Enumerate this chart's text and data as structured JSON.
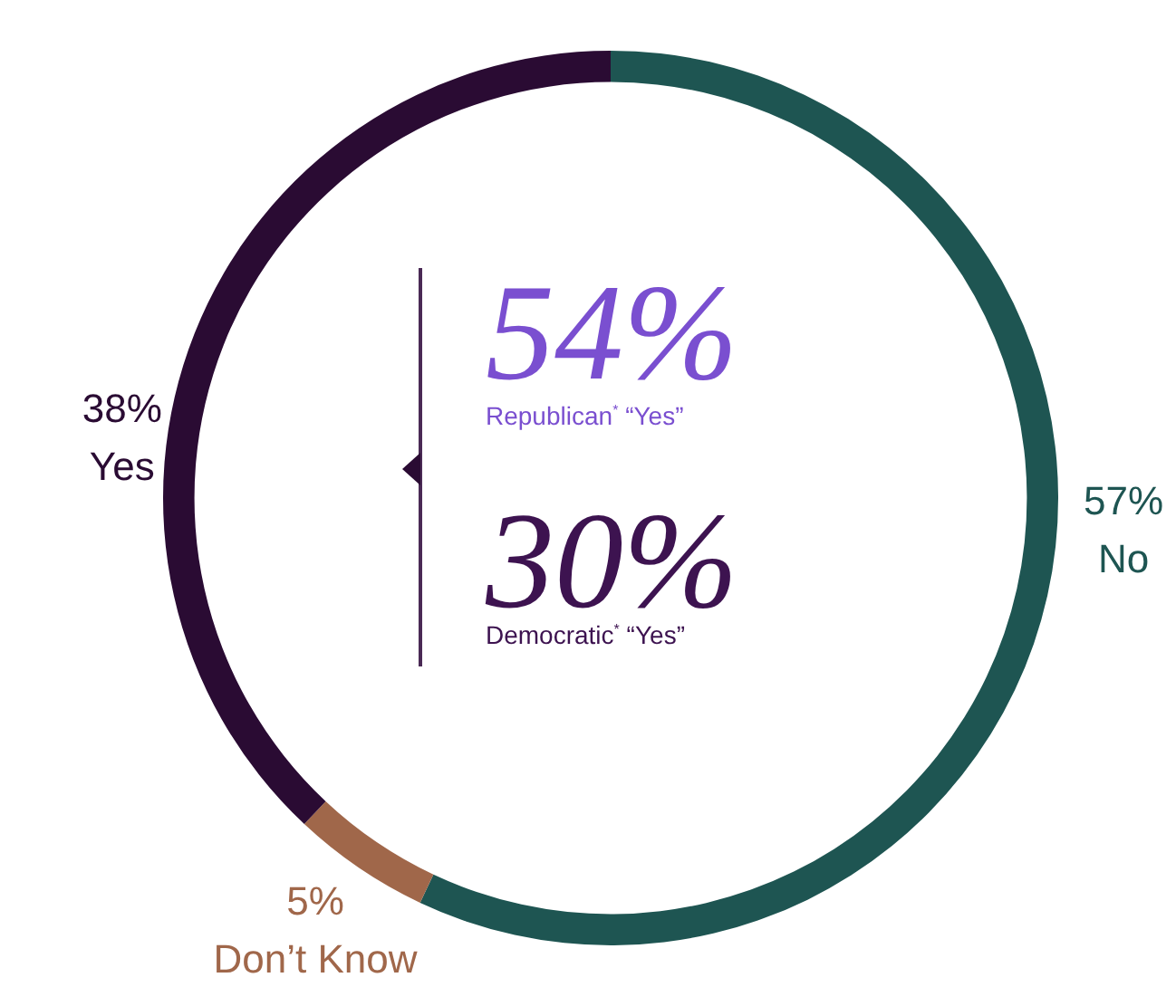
{
  "chart_data": {
    "type": "donut",
    "categories": [
      "No",
      "Don’t Know",
      "Yes"
    ],
    "values": [
      57,
      5,
      38
    ],
    "colors": [
      "#1e5552",
      "#a0674a",
      "#2a0b33"
    ],
    "value_labels": [
      "57%",
      "5%",
      "38%"
    ],
    "annotations": [
      "54%",
      "Republican$^{*}$ “Yes”",
      "30%",
      "Democratic$^{*}$ “Yes”"
    ],
    "legend": false
  }
}
